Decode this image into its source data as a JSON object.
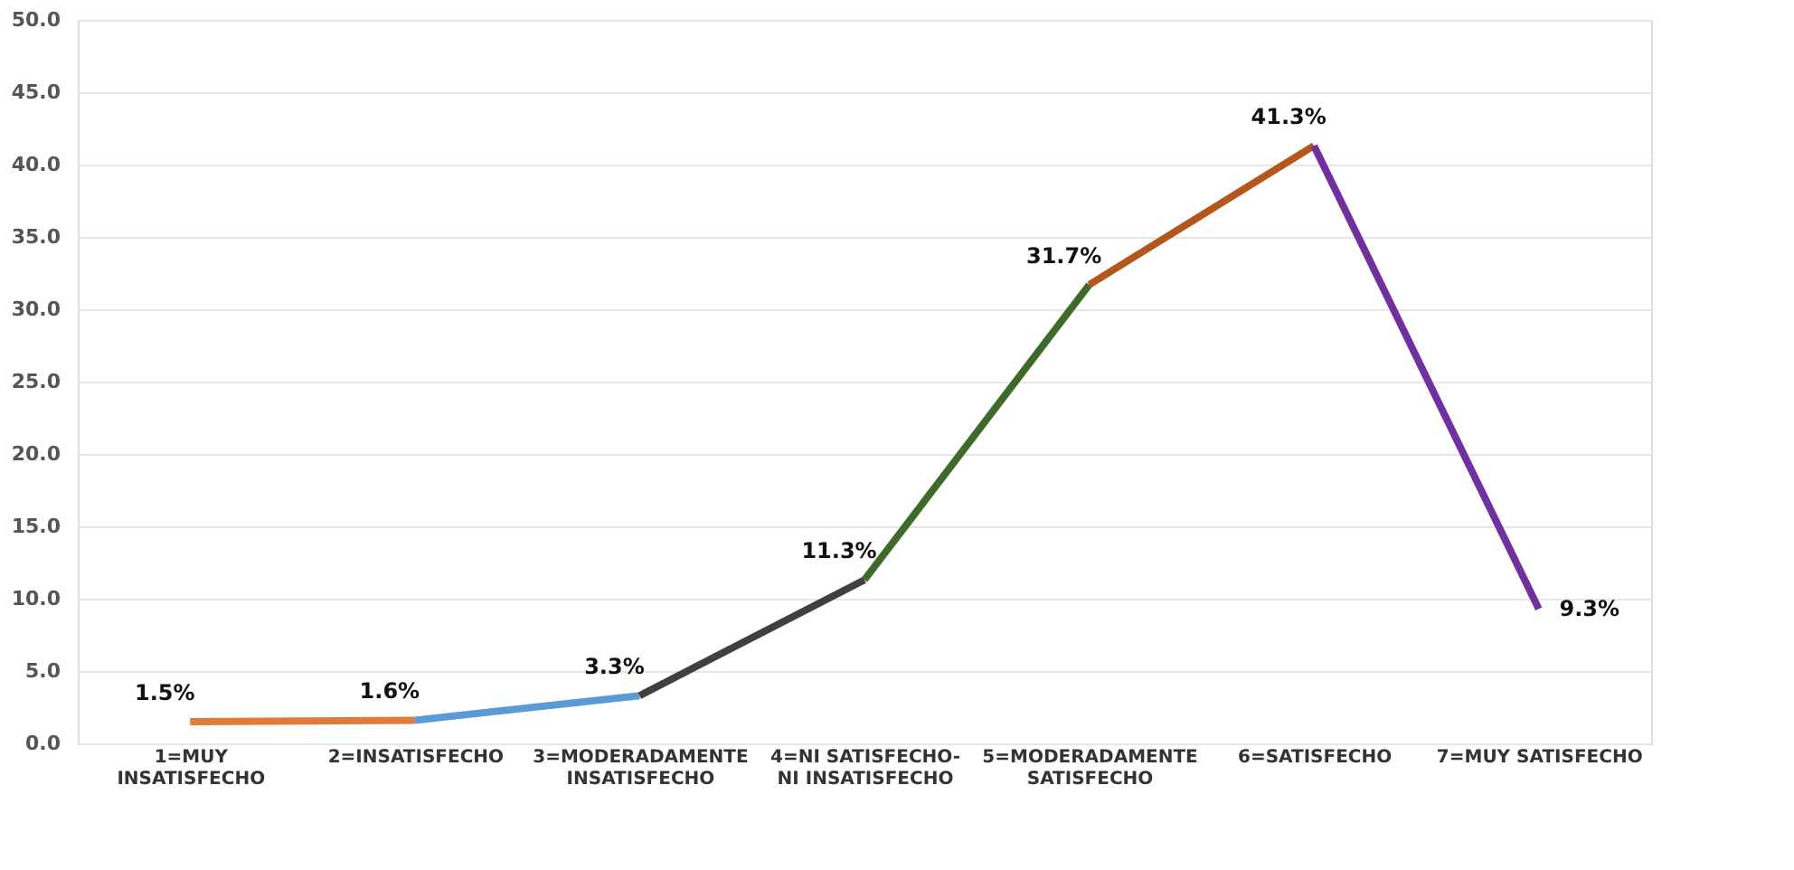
{
  "chart_data": {
    "type": "line",
    "categories": [
      "1=MUY INSATISFECHO",
      "2=INSATISFECHO",
      "3=MODERADAMENTE INSATISFECHO",
      "4=NI SATISFECHO-NI INSATISFECHO",
      "5=MODERADAMENTE SATISFECHO",
      "6=SATISFECHO",
      "7=MUY SATISFECHO"
    ],
    "series": [
      {
        "color": "#e07b39",
        "values": [
          1.5,
          1.6,
          null,
          null,
          null,
          null,
          null
        ],
        "value_labels": [
          "1.5%",
          "1.6%",
          null,
          null,
          null,
          null,
          null
        ]
      },
      {
        "color": "#5b9bd5",
        "values": [
          null,
          1.6,
          3.3,
          null,
          null,
          null,
          null
        ],
        "value_labels": [
          null,
          null,
          "3.3%",
          null,
          null,
          null,
          null
        ]
      },
      {
        "color": "#404040",
        "values": [
          null,
          null,
          3.3,
          11.3,
          null,
          null,
          null
        ],
        "value_labels": [
          null,
          null,
          null,
          "11.3%",
          null,
          null,
          null
        ]
      },
      {
        "color": "#3f6b2a",
        "values": [
          null,
          null,
          null,
          11.3,
          31.7,
          null,
          null
        ],
        "value_labels": [
          null,
          null,
          null,
          null,
          "31.7%",
          null,
          null
        ]
      },
      {
        "color": "#b5561c",
        "values": [
          null,
          null,
          null,
          null,
          31.7,
          41.3,
          null
        ],
        "value_labels": [
          null,
          null,
          null,
          null,
          null,
          "41.3%",
          null
        ]
      },
      {
        "color": "#7030a0",
        "values": [
          null,
          null,
          null,
          null,
          null,
          41.3,
          9.3
        ],
        "value_labels": [
          null,
          null,
          null,
          null,
          null,
          null,
          "9.3%"
        ]
      }
    ],
    "ylim": [
      0,
      50
    ],
    "yticks": [
      {
        "value": 0,
        "label": "0.0"
      },
      {
        "value": 5,
        "label": "5.0"
      },
      {
        "value": 10,
        "label": "10.0"
      },
      {
        "value": 15,
        "label": "15.0"
      },
      {
        "value": 20,
        "label": "20.0"
      },
      {
        "value": 25,
        "label": "25.0"
      },
      {
        "value": 30,
        "label": "30.0"
      },
      {
        "value": 35,
        "label": "35.0"
      },
      {
        "value": 40,
        "label": "40.0"
      },
      {
        "value": 45,
        "label": "45.0"
      },
      {
        "value": 50,
        "label": "50.0"
      }
    ],
    "grid": "y",
    "legend": false,
    "marker": "none",
    "line_style": "solid"
  }
}
